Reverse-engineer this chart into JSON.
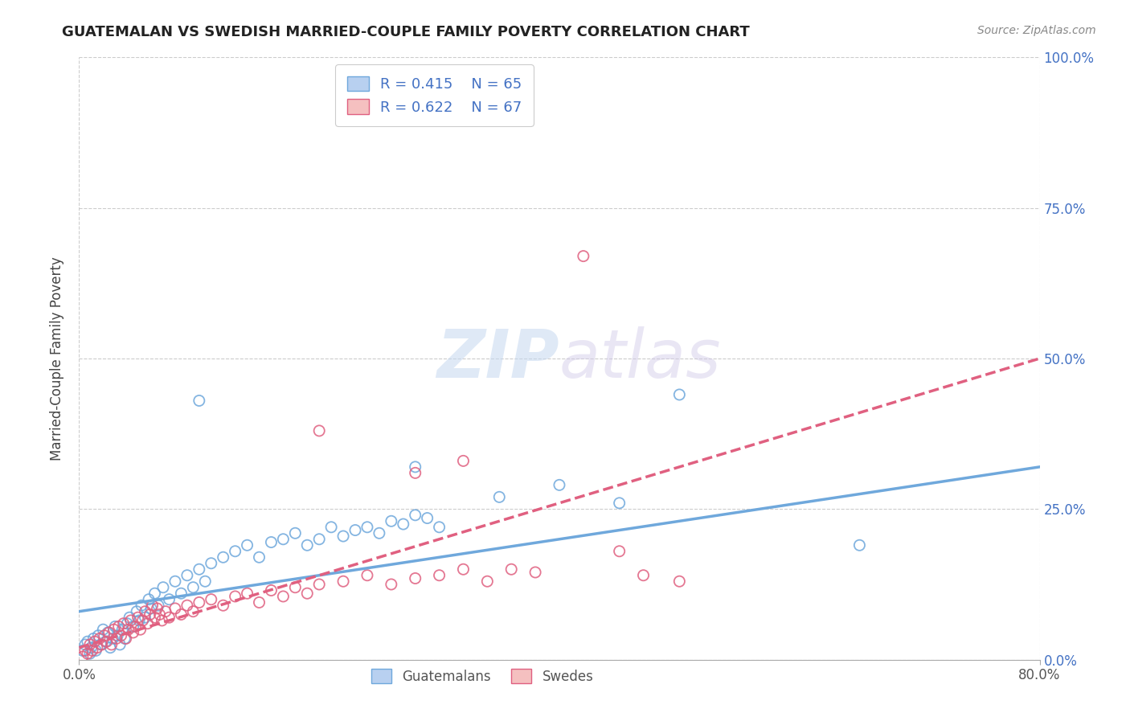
{
  "title": "GUATEMALAN VS SWEDISH MARRIED-COUPLE FAMILY POVERTY CORRELATION CHART",
  "source": "Source: ZipAtlas.com",
  "ylabel": "Married-Couple Family Poverty",
  "ytick_labels": [
    "0.0%",
    "25.0%",
    "50.0%",
    "75.0%",
    "100.0%"
  ],
  "ytick_values": [
    0,
    25,
    50,
    75,
    100
  ],
  "xlim": [
    0,
    80
  ],
  "ylim": [
    0,
    100
  ],
  "guatemalan_color": "#6fa8dc",
  "swedish_color": "#e06080",
  "guatemalan_R": 0.415,
  "guatemalan_N": 65,
  "swedish_R": 0.622,
  "swedish_N": 67,
  "guatemalan_line": [
    0,
    8,
    80,
    32
  ],
  "swedish_line": [
    0,
    2,
    80,
    50
  ],
  "guatemalan_scatter": [
    [
      0.3,
      1.5
    ],
    [
      0.5,
      2.5
    ],
    [
      0.7,
      3.0
    ],
    [
      0.9,
      1.0
    ],
    [
      1.0,
      2.0
    ],
    [
      1.2,
      3.5
    ],
    [
      1.4,
      1.5
    ],
    [
      1.6,
      4.0
    ],
    [
      1.8,
      2.5
    ],
    [
      2.0,
      5.0
    ],
    [
      2.2,
      3.0
    ],
    [
      2.4,
      4.5
    ],
    [
      2.6,
      2.0
    ],
    [
      2.8,
      3.5
    ],
    [
      3.0,
      5.5
    ],
    [
      3.2,
      4.0
    ],
    [
      3.4,
      2.5
    ],
    [
      3.6,
      5.0
    ],
    [
      3.8,
      3.5
    ],
    [
      4.0,
      6.0
    ],
    [
      4.2,
      7.0
    ],
    [
      4.5,
      5.5
    ],
    [
      4.8,
      8.0
    ],
    [
      5.0,
      6.5
    ],
    [
      5.2,
      9.0
    ],
    [
      5.5,
      7.0
    ],
    [
      5.8,
      10.0
    ],
    [
      6.0,
      8.5
    ],
    [
      6.3,
      11.0
    ],
    [
      6.6,
      9.0
    ],
    [
      7.0,
      12.0
    ],
    [
      7.5,
      10.0
    ],
    [
      8.0,
      13.0
    ],
    [
      8.5,
      11.0
    ],
    [
      9.0,
      14.0
    ],
    [
      9.5,
      12.0
    ],
    [
      10.0,
      15.0
    ],
    [
      10.5,
      13.0
    ],
    [
      11.0,
      16.0
    ],
    [
      12.0,
      17.0
    ],
    [
      13.0,
      18.0
    ],
    [
      14.0,
      19.0
    ],
    [
      15.0,
      17.0
    ],
    [
      16.0,
      19.5
    ],
    [
      17.0,
      20.0
    ],
    [
      18.0,
      21.0
    ],
    [
      19.0,
      19.0
    ],
    [
      20.0,
      20.0
    ],
    [
      21.0,
      22.0
    ],
    [
      22.0,
      20.5
    ],
    [
      23.0,
      21.5
    ],
    [
      24.0,
      22.0
    ],
    [
      25.0,
      21.0
    ],
    [
      26.0,
      23.0
    ],
    [
      27.0,
      22.5
    ],
    [
      28.0,
      24.0
    ],
    [
      29.0,
      23.5
    ],
    [
      30.0,
      22.0
    ],
    [
      10.0,
      43.0
    ],
    [
      28.0,
      32.0
    ],
    [
      35.0,
      27.0
    ],
    [
      40.0,
      29.0
    ],
    [
      45.0,
      26.0
    ],
    [
      50.0,
      44.0
    ],
    [
      65.0,
      19.0
    ]
  ],
  "swedish_scatter": [
    [
      0.3,
      0.5
    ],
    [
      0.5,
      1.5
    ],
    [
      0.7,
      1.0
    ],
    [
      0.9,
      2.5
    ],
    [
      1.1,
      1.5
    ],
    [
      1.3,
      3.0
    ],
    [
      1.5,
      2.0
    ],
    [
      1.7,
      3.5
    ],
    [
      1.9,
      2.5
    ],
    [
      2.1,
      4.0
    ],
    [
      2.3,
      3.0
    ],
    [
      2.5,
      4.5
    ],
    [
      2.7,
      2.5
    ],
    [
      2.9,
      5.0
    ],
    [
      3.1,
      3.5
    ],
    [
      3.3,
      5.5
    ],
    [
      3.5,
      4.0
    ],
    [
      3.7,
      6.0
    ],
    [
      3.9,
      3.5
    ],
    [
      4.1,
      5.0
    ],
    [
      4.3,
      6.5
    ],
    [
      4.5,
      4.5
    ],
    [
      4.7,
      5.5
    ],
    [
      4.9,
      7.0
    ],
    [
      5.1,
      5.0
    ],
    [
      5.3,
      6.5
    ],
    [
      5.5,
      8.0
    ],
    [
      5.7,
      6.0
    ],
    [
      5.9,
      7.5
    ],
    [
      6.1,
      9.0
    ],
    [
      6.3,
      7.0
    ],
    [
      6.5,
      8.5
    ],
    [
      6.7,
      7.5
    ],
    [
      6.9,
      6.5
    ],
    [
      7.2,
      8.0
    ],
    [
      7.5,
      7.0
    ],
    [
      8.0,
      8.5
    ],
    [
      8.5,
      7.5
    ],
    [
      9.0,
      9.0
    ],
    [
      9.5,
      8.0
    ],
    [
      10.0,
      9.5
    ],
    [
      11.0,
      10.0
    ],
    [
      12.0,
      9.0
    ],
    [
      13.0,
      10.5
    ],
    [
      14.0,
      11.0
    ],
    [
      15.0,
      9.5
    ],
    [
      16.0,
      11.5
    ],
    [
      17.0,
      10.5
    ],
    [
      18.0,
      12.0
    ],
    [
      19.0,
      11.0
    ],
    [
      20.0,
      12.5
    ],
    [
      22.0,
      13.0
    ],
    [
      24.0,
      14.0
    ],
    [
      26.0,
      12.5
    ],
    [
      28.0,
      13.5
    ],
    [
      30.0,
      14.0
    ],
    [
      32.0,
      15.0
    ],
    [
      34.0,
      13.0
    ],
    [
      36.0,
      15.0
    ],
    [
      38.0,
      14.5
    ],
    [
      20.0,
      38.0
    ],
    [
      28.0,
      31.0
    ],
    [
      32.0,
      33.0
    ],
    [
      45.0,
      18.0
    ],
    [
      50.0,
      13.0
    ],
    [
      42.0,
      67.0
    ],
    [
      47.0,
      14.0
    ]
  ]
}
